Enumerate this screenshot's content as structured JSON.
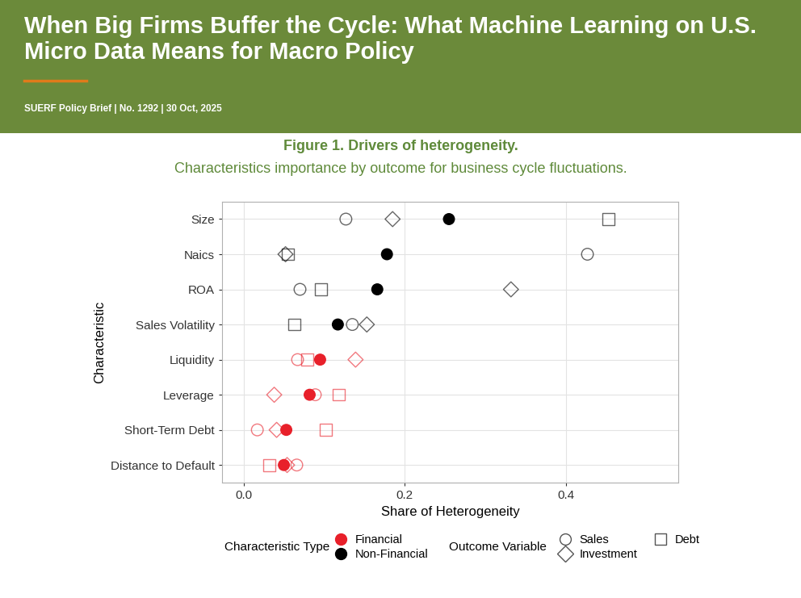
{
  "header": {
    "title": "When Big Firms Buffer the Cycle: What Machine Learning on U.S. Micro Data Means for Macro Policy",
    "subtitle": "SUERF Policy Brief | No. 1292 | 30 Oct, 2025",
    "figure_title": "Figure 1. Drivers of heterogeneity.",
    "figure_subtitle": "Characteristics importance by outcome for business cycle fluctuations."
  },
  "chart_data": {
    "type": "scatter",
    "orientation": "horizontal",
    "x_label": "Share of Heterogeneity",
    "y_label": "Characteristic",
    "categories": [
      "Size",
      "Naics",
      "ROA",
      "Sales Volatility",
      "Liquidity",
      "Leverage",
      "Short-Term Debt",
      "Distance to Default"
    ],
    "characteristic_type": {
      "title": "Characteristic Type",
      "entries": [
        {
          "name": "Financial",
          "color": "#e8202a"
        },
        {
          "name": "Non-Financial",
          "color": "#000000"
        }
      ],
      "by_category": [
        "Non-Financial",
        "Non-Financial",
        "Non-Financial",
        "Non-Financial",
        "Financial",
        "Financial",
        "Financial",
        "Financial"
      ]
    },
    "outcome_legend_title": "Outcome Variable",
    "series": [
      {
        "name": "Sales",
        "marker": "circle",
        "values": [
          0.127,
          0.427,
          0.07,
          0.135,
          0.067,
          0.089,
          0.017,
          0.066
        ]
      },
      {
        "name": "Investment",
        "marker": "diamond",
        "values": [
          0.185,
          0.052,
          0.332,
          0.153,
          0.139,
          0.038,
          0.041,
          0.054
        ]
      },
      {
        "name": "Debt",
        "marker": "square",
        "values": [
          0.453,
          0.055,
          0.096,
          0.063,
          0.079,
          0.118,
          0.102,
          0.032
        ]
      },
      {
        "marker": "filled circle",
        "values": [
          0.255,
          0.178,
          0.166,
          0.117,
          0.095,
          0.082,
          0.053,
          0.05
        ]
      }
    ],
    "xlim": [
      -0.027,
      0.54
    ],
    "xticks": [
      {
        "value": 0,
        "label": "0.0"
      },
      {
        "value": 0.2,
        "label": "0.2"
      },
      {
        "value": 0.4,
        "label": "0.4"
      }
    ],
    "grid": true
  }
}
